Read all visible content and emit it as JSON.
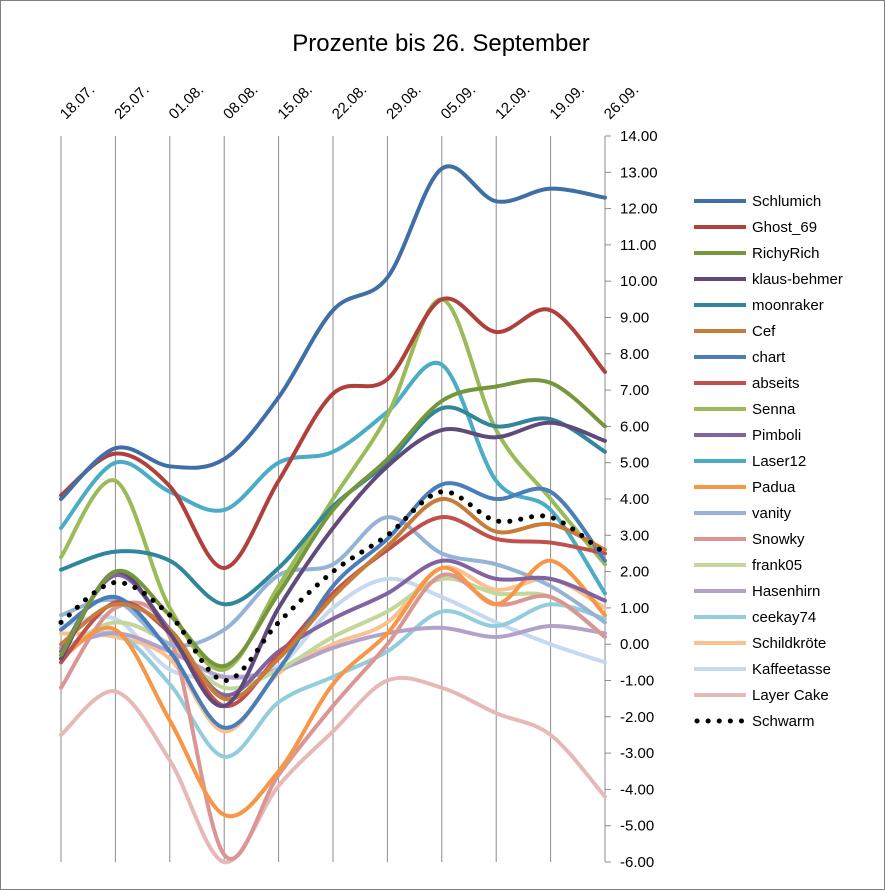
{
  "chart_data": {
    "type": "line",
    "title": "Prozente bis 26. September",
    "xlabel": "",
    "ylabel": "",
    "x_categories": [
      "18.07.",
      "25.07.",
      "01.08.",
      "08.08.",
      "15.08.",
      "22.08.",
      "29.08.",
      "05.09.",
      "12.09.",
      "19.09.",
      "26.09."
    ],
    "y_tick_labels": [
      "14.00",
      "13.00",
      "12.00",
      "11.00",
      "10.00",
      "9.00",
      "8.00",
      "7.00",
      "6.00",
      "5.00",
      "4.00",
      "3.00",
      "2.00",
      "1.00",
      "0.00",
      "-1.00",
      "-2.00",
      "-3.00",
      "-4.00",
      "-5.00",
      "-6.00"
    ],
    "ylim": [
      -6,
      14
    ],
    "y_axis_position": "right",
    "gridlines": "vertical",
    "legend_position": "right",
    "series": [
      {
        "name": "Schlumich",
        "color": "#3f6fa6",
        "values": [
          4.0,
          5.4,
          4.9,
          5.1,
          6.8,
          9.2,
          10.1,
          13.1,
          12.2,
          12.55,
          12.3
        ]
      },
      {
        "name": "Ghost_69",
        "color": "#b0403c",
        "values": [
          4.1,
          5.25,
          4.35,
          2.1,
          4.5,
          6.9,
          7.3,
          9.5,
          8.6,
          9.2,
          7.5
        ]
      },
      {
        "name": "RichyRich",
        "color": "#76963b",
        "values": [
          -0.3,
          2.0,
          0.8,
          -0.6,
          1.4,
          3.7,
          5.1,
          6.7,
          7.1,
          7.2,
          6.0
        ]
      },
      {
        "name": "klaus-behmer",
        "color": "#604a7b",
        "values": [
          -0.4,
          2.0,
          0.3,
          -1.7,
          1.0,
          3.2,
          4.9,
          5.9,
          5.7,
          6.1,
          5.6
        ]
      },
      {
        "name": "moonraker",
        "color": "#31859c",
        "values": [
          2.05,
          2.55,
          2.3,
          1.1,
          2.1,
          3.8,
          5.0,
          6.5,
          6.0,
          6.2,
          5.3
        ]
      },
      {
        "name": "Cef",
        "color": "#c77c3a",
        "values": [
          0.0,
          1.1,
          0.4,
          -1.5,
          -0.4,
          1.3,
          2.7,
          4.0,
          3.1,
          3.3,
          2.6
        ]
      },
      {
        "name": "chart",
        "color": "#4a7ebb",
        "values": [
          0.4,
          1.3,
          -0.2,
          -2.3,
          -0.7,
          1.6,
          2.9,
          4.4,
          4.0,
          4.2,
          2.3
        ]
      },
      {
        "name": "abseits",
        "color": "#c0504d",
        "values": [
          -0.5,
          1.15,
          0.3,
          -1.7,
          -0.3,
          1.4,
          2.6,
          3.5,
          2.9,
          2.8,
          2.5
        ]
      },
      {
        "name": "Senna",
        "color": "#9bbb59",
        "values": [
          2.4,
          4.5,
          1.0,
          -0.7,
          1.6,
          4.0,
          6.3,
          9.5,
          5.9,
          4.0,
          2.2
        ]
      },
      {
        "name": "Pimboli",
        "color": "#8064a2",
        "values": [
          -0.2,
          1.9,
          0.4,
          -1.4,
          -0.2,
          0.7,
          1.4,
          2.3,
          1.8,
          1.8,
          1.2
        ]
      },
      {
        "name": "Laser12",
        "color": "#4bacc6",
        "values": [
          3.2,
          5.0,
          4.2,
          3.7,
          5.0,
          5.3,
          6.4,
          7.7,
          4.5,
          3.7,
          1.4
        ]
      },
      {
        "name": "Padua",
        "color": "#f79646",
        "values": [
          -0.4,
          0.4,
          -2.1,
          -4.7,
          -3.5,
          -1.1,
          0.3,
          2.1,
          1.1,
          2.3,
          0.8
        ]
      },
      {
        "name": "vanity",
        "color": "#95b3d7",
        "values": [
          0.8,
          1.2,
          0.0,
          0.4,
          1.9,
          2.2,
          3.5,
          2.5,
          2.2,
          1.6,
          0.6
        ]
      },
      {
        "name": "Snowky",
        "color": "#d99694",
        "values": [
          -1.2,
          1.0,
          0.2,
          -5.8,
          -3.6,
          -1.7,
          0.0,
          1.9,
          1.1,
          1.3,
          0.2
        ]
      },
      {
        "name": "frank05",
        "color": "#c3d69b",
        "values": [
          -0.2,
          0.6,
          0.0,
          -1.2,
          -0.7,
          0.2,
          0.9,
          1.8,
          1.4,
          1.3,
          0.2
        ]
      },
      {
        "name": "Hasenhirn",
        "color": "#b3a2c7",
        "values": [
          -0.1,
          0.3,
          -0.2,
          -0.9,
          -0.7,
          -0.1,
          0.3,
          0.45,
          0.2,
          0.5,
          0.3
        ]
      },
      {
        "name": "ceekay74",
        "color": "#93cddd",
        "values": [
          -0.2,
          0.3,
          -1.1,
          -3.1,
          -1.6,
          -0.9,
          -0.2,
          0.9,
          0.5,
          1.1,
          0.7
        ]
      },
      {
        "name": "Schildkröte",
        "color": "#fac090",
        "values": [
          0.3,
          0.2,
          -0.4,
          -2.4,
          -0.8,
          0.0,
          0.6,
          2.1,
          1.5,
          1.8,
          1.0
        ]
      },
      {
        "name": "Kaffeetasse",
        "color": "#c6d9f1",
        "values": [
          0.5,
          0.7,
          -0.7,
          -0.9,
          -0.6,
          1.0,
          1.8,
          1.3,
          0.6,
          0.0,
          -0.5
        ]
      },
      {
        "name": "Layer Cake",
        "color": "#e6b9b8",
        "values": [
          -2.5,
          -1.3,
          -3.2,
          -6.0,
          -3.9,
          -2.4,
          -1.0,
          -1.2,
          -1.9,
          -2.5,
          -4.2
        ]
      },
      {
        "name": "Schwarm",
        "color": "#000000",
        "dotted": true,
        "values": [
          0.6,
          1.7,
          0.8,
          -1.0,
          0.6,
          2.0,
          3.0,
          4.2,
          3.4,
          3.5,
          2.5
        ]
      }
    ]
  }
}
